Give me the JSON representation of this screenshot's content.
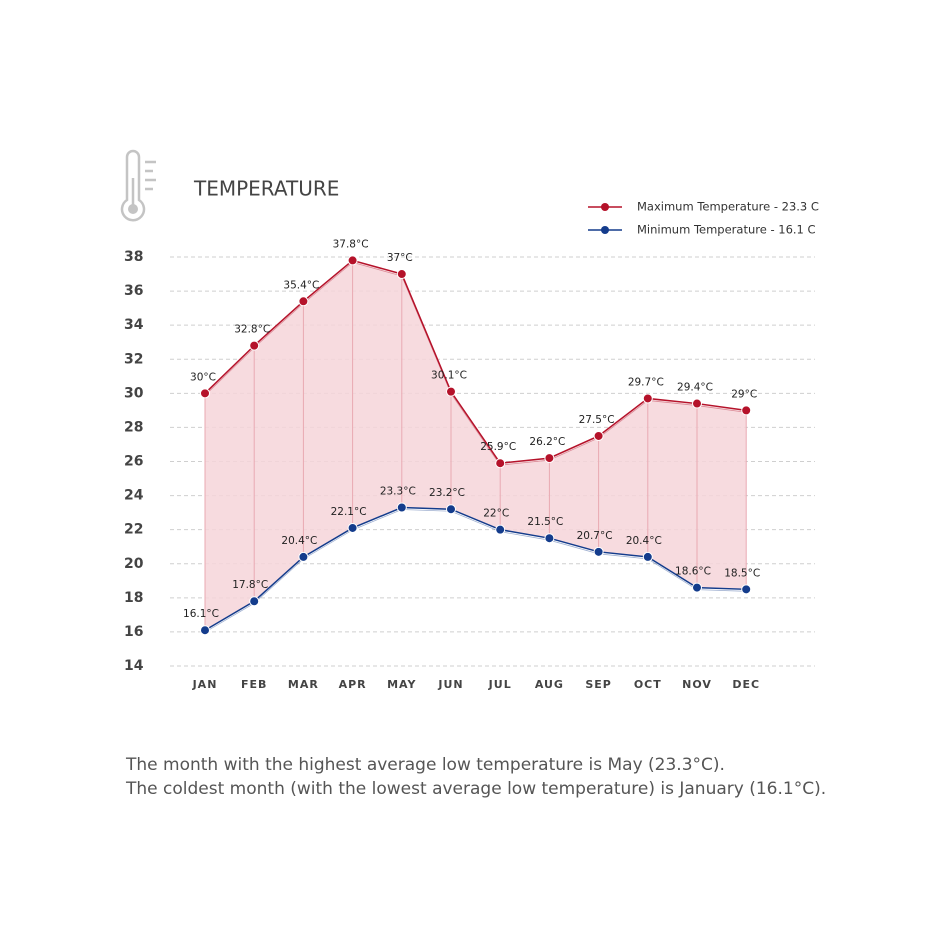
{
  "chart_data": {
    "type": "line",
    "title": "TEMPERATURE",
    "categories": [
      "JAN",
      "FEB",
      "MAR",
      "APR",
      "MAY",
      "JUN",
      "JUL",
      "AUG",
      "SEP",
      "OCT",
      "NOV",
      "DEC"
    ],
    "series": [
      {
        "name": "Maximum Temperature - 23.3 C",
        "color": "#b5122a",
        "values": [
          30,
          32.8,
          35.4,
          37.8,
          37,
          30.1,
          25.9,
          26.2,
          27.5,
          29.7,
          29.4,
          29
        ],
        "value_labels": [
          "30°C",
          "32.8°C",
          "35.4°C",
          "37.8°C",
          "37°C",
          "30.1°C",
          "25.9°C",
          "26.2°C",
          "27.5°C",
          "29.7°C",
          "29.4°C",
          "29°C"
        ]
      },
      {
        "name": "Minimum Temperature - 16.1 C",
        "color": "#143c8c",
        "values": [
          16.1,
          17.8,
          20.4,
          22.1,
          23.3,
          23.2,
          22,
          21.5,
          20.7,
          20.4,
          18.6,
          18.5
        ],
        "value_labels": [
          "16.1°C",
          "17.8°C",
          "20.4°C",
          "22.1°C",
          "23.3°C",
          "23.2°C",
          "22°C",
          "21.5°C",
          "20.7°C",
          "20.4°C",
          "18.6°C",
          "18.5°C"
        ]
      }
    ],
    "ylim": [
      14,
      38
    ],
    "yticks": [
      14,
      16,
      18,
      20,
      22,
      24,
      26,
      28,
      30,
      32,
      34,
      36,
      38
    ],
    "grid": true,
    "range_fill": "#f6d5d9",
    "annotations": [
      "The month with the highest average low temperature is May (23.3°C).",
      "The coldest month (with the lowest average low temperature) is January (16.1°C)."
    ]
  }
}
